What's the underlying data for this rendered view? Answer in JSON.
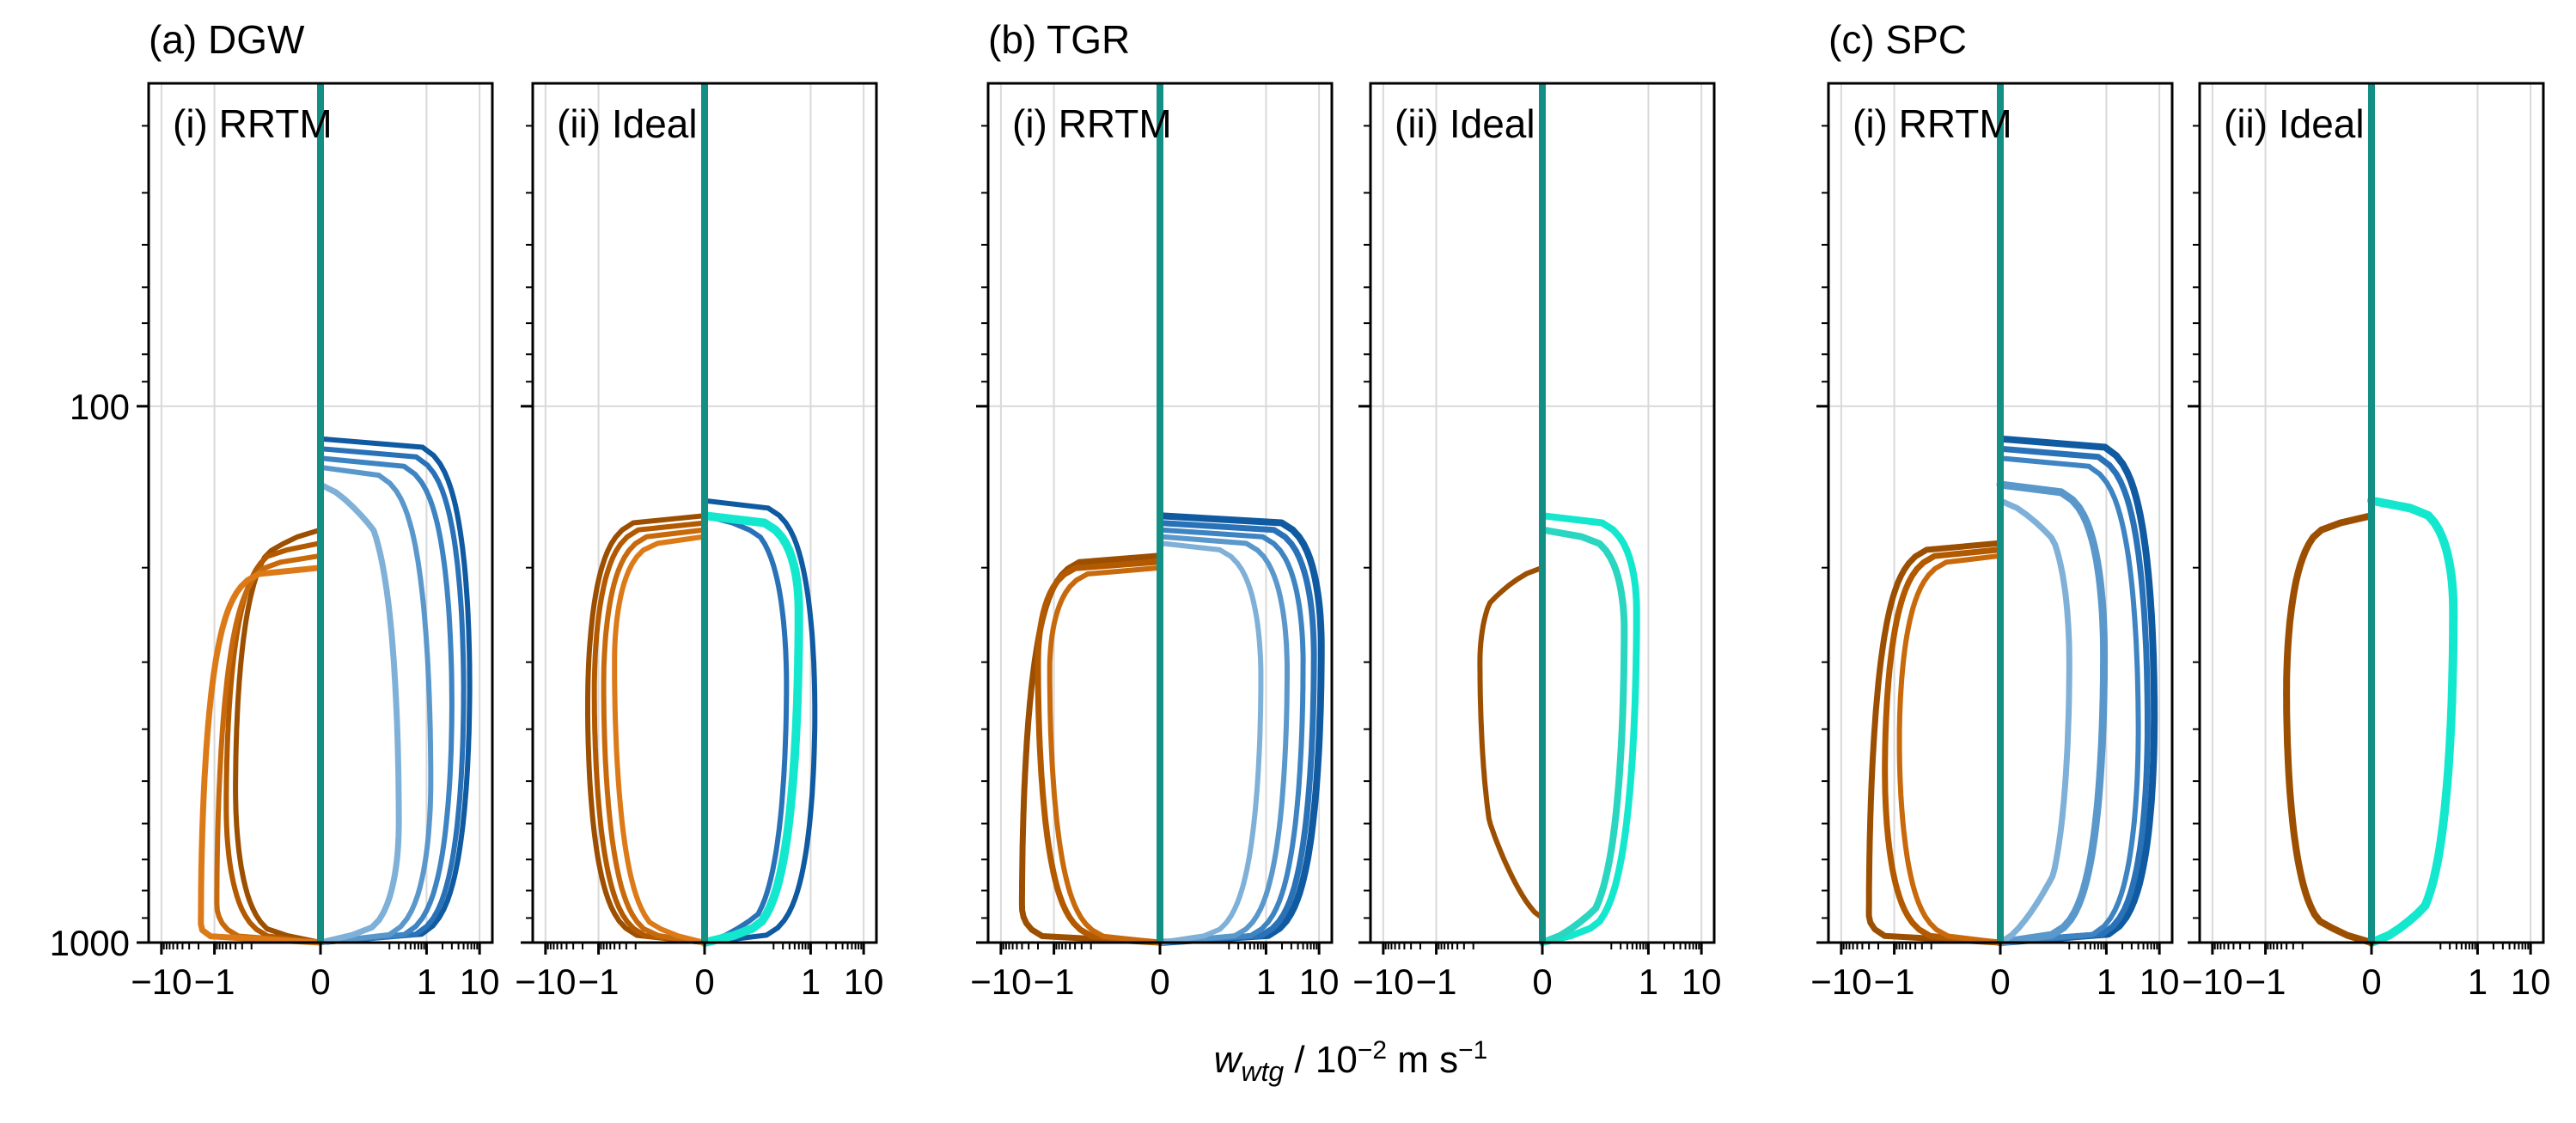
{
  "figure": {
    "xlabel_main": "w",
    "xlabel_sub": "wtg",
    "xlabel_rest": " / 10",
    "xlabel_exp": "−2",
    "xlabel_unit": " m s",
    "xlabel_unit_exp": "−1"
  },
  "colors": {
    "neg": [
      "#9c4f00",
      "#b35a00",
      "#c86a0c",
      "#dc7a18",
      "#f08c26",
      "#f7a55c",
      "#fbbf8c"
    ],
    "pos": [
      "#0f5aa0",
      "#2a72b8",
      "#3e84c2",
      "#5a98cc",
      "#7fb0d8",
      "#a6c8e4",
      "#c4dbee"
    ],
    "ideal_pos": [
      "#13e8cf",
      "#2ad6c0",
      "#1ec8b2"
    ],
    "zero_line": "#138f86",
    "grid": "#d9d9d9"
  },
  "chart_data": [
    {
      "type": "line",
      "group": "(a) DGW",
      "panel": "(i) RRTM",
      "title": "(a) DGW",
      "label": "(i) RRTM",
      "xscale": "symlog",
      "yscale": "log",
      "ylim": [
        1000,
        25
      ],
      "xticks": [
        "−10",
        "−1",
        "0",
        "1",
        "10"
      ],
      "yticks": [
        "100",
        "1000"
      ],
      "profiles": [
        {
          "sign": "pos",
          "amp": 6.5,
          "top": 115,
          "base": 1000,
          "peak": 330,
          "shape": "bulge",
          "width": 6
        },
        {
          "sign": "pos",
          "amp": 5.0,
          "top": 120,
          "base": 1000,
          "peak": 340,
          "shape": "bulge",
          "width": 6
        },
        {
          "sign": "pos",
          "amp": 3.0,
          "top": 125,
          "base": 1000,
          "peak": 360,
          "shape": "bulge",
          "width": 6
        },
        {
          "sign": "pos",
          "amp": 1.2,
          "top": 130,
          "base": 1000,
          "peak": 500,
          "shape": "bulge",
          "width": 6
        },
        {
          "sign": "pos",
          "amp": 0.3,
          "top": 140,
          "base": 1000,
          "peak": 600,
          "shape": "bulge",
          "width": 7
        },
        {
          "sign": "neg",
          "amp": 0.4,
          "top": 170,
          "base": 1000,
          "peak": 520,
          "shape": "bulge",
          "width": 6
        },
        {
          "sign": "neg",
          "amp": 0.6,
          "top": 180,
          "base": 1000,
          "peak": 560,
          "shape": "bulge",
          "width": 6
        },
        {
          "sign": "neg",
          "amp": 0.9,
          "top": 190,
          "base": 1000,
          "peak": 850,
          "shape": "bulge",
          "width": 6
        },
        {
          "sign": "neg",
          "amp": 1.8,
          "top": 200,
          "base": 1000,
          "peak": 930,
          "shape": "bulge",
          "width": 7
        }
      ]
    },
    {
      "type": "line",
      "group": "(a) DGW",
      "panel": "(ii) Ideal",
      "title": "",
      "label": "(ii) Ideal",
      "xscale": "symlog",
      "yscale": "log",
      "ylim": [
        1000,
        25
      ],
      "xticks": [
        "−10",
        "−1",
        "0",
        "1",
        "10"
      ],
      "yticks": [
        "100",
        "1000"
      ],
      "profiles": [
        {
          "sign": "pos",
          "amp": 1.2,
          "top": 150,
          "base": 1000,
          "peak": 370,
          "shape": "bulge",
          "width": 6
        },
        {
          "sign": "pos",
          "amp": 0.35,
          "top": 160,
          "base": 1000,
          "peak": 330,
          "shape": "bulge",
          "width": 6
        },
        {
          "sign": "ideal",
          "amp": 0.6,
          "top": 160,
          "base": 1000,
          "peak": 240,
          "shape": "bulge",
          "width": 10
        },
        {
          "sign": "neg",
          "amp": 1.6,
          "top": 160,
          "base": 1000,
          "peak": 360,
          "shape": "bulge",
          "width": 6
        },
        {
          "sign": "neg",
          "amp": 1.2,
          "top": 165,
          "base": 1000,
          "peak": 340,
          "shape": "bulge",
          "width": 6
        },
        {
          "sign": "neg",
          "amp": 0.8,
          "top": 170,
          "base": 1000,
          "peak": 330,
          "shape": "bulge",
          "width": 6
        },
        {
          "sign": "neg",
          "amp": 0.5,
          "top": 175,
          "base": 1000,
          "peak": 300,
          "shape": "bulge",
          "width": 6
        }
      ]
    },
    {
      "type": "line",
      "group": "(b) TGR",
      "panel": "(i) RRTM",
      "title": "(b) TGR",
      "label": "(i) RRTM",
      "xscale": "symlog",
      "yscale": "log",
      "ylim": [
        1000,
        25
      ],
      "xticks": [
        "−10",
        "−1",
        "0",
        "1",
        "10"
      ],
      "yticks": [
        "100",
        "1000"
      ],
      "profiles": [
        {
          "sign": "pos",
          "amp": 11.0,
          "top": 160,
          "base": 1000,
          "peak": 280,
          "shape": "bulge",
          "width": 8
        },
        {
          "sign": "pos",
          "amp": 8.0,
          "top": 165,
          "base": 1000,
          "peak": 290,
          "shape": "bulge",
          "width": 7
        },
        {
          "sign": "pos",
          "amp": 5.0,
          "top": 170,
          "base": 1000,
          "peak": 300,
          "shape": "bulge",
          "width": 6
        },
        {
          "sign": "pos",
          "amp": 2.5,
          "top": 175,
          "base": 1000,
          "peak": 310,
          "shape": "bulge",
          "width": 6
        },
        {
          "sign": "pos",
          "amp": 0.8,
          "top": 180,
          "base": 1000,
          "peak": 320,
          "shape": "bulge",
          "width": 6
        },
        {
          "sign": "neg",
          "amp": 4.0,
          "top": 190,
          "base": 1000,
          "peak": 860,
          "shape": "bulge",
          "width": 7
        },
        {
          "sign": "neg",
          "amp": 2.0,
          "top": 195,
          "base": 1000,
          "peak": 300,
          "shape": "bulge",
          "width": 7
        },
        {
          "sign": "neg",
          "amp": 1.2,
          "top": 200,
          "base": 1000,
          "peak": 310,
          "shape": "bulge",
          "width": 6
        }
      ]
    },
    {
      "type": "line",
      "group": "(b) TGR",
      "panel": "(ii) Ideal",
      "title": "",
      "label": "(ii) Ideal",
      "xscale": "symlog",
      "yscale": "log",
      "ylim": [
        1000,
        25
      ],
      "xticks": [
        "−10",
        "−1",
        "0",
        "1",
        "10"
      ],
      "yticks": [
        "100",
        "1000"
      ],
      "profiles": [
        {
          "sign": "ideal",
          "amp": 0.6,
          "top": 160,
          "base": 1000,
          "peak": 240,
          "shape": "bulge",
          "width": 8
        },
        {
          "sign": "ideal",
          "amp": 0.35,
          "top": 170,
          "base": 1000,
          "peak": 260,
          "shape": "bulge",
          "width": 8
        },
        {
          "sign": "neg",
          "amp": 0.15,
          "top": 200,
          "base": 900,
          "peak": 300,
          "shape": "bulge",
          "width": 6
        }
      ]
    },
    {
      "type": "line",
      "group": "(c) SPC",
      "panel": "(i) RRTM",
      "title": "(c) SPC",
      "label": "(i) RRTM",
      "xscale": "symlog",
      "yscale": "log",
      "ylim": [
        1000,
        25
      ],
      "xticks": [
        "−10",
        "−1",
        "0",
        "1",
        "10"
      ],
      "yticks": [
        "100",
        "1000"
      ],
      "profiles": [
        {
          "sign": "pos",
          "amp": 8.0,
          "top": 115,
          "base": 1000,
          "peak": 380,
          "shape": "bulge",
          "width": 8
        },
        {
          "sign": "pos",
          "amp": 6.0,
          "top": 120,
          "base": 1000,
          "peak": 390,
          "shape": "bulge",
          "width": 7
        },
        {
          "sign": "pos",
          "amp": 4.0,
          "top": 125,
          "base": 1000,
          "peak": 400,
          "shape": "bulge",
          "width": 6
        },
        {
          "sign": "pos",
          "amp": 0.9,
          "top": 140,
          "base": 1000,
          "peak": 290,
          "shape": "bulge",
          "width": 9
        },
        {
          "sign": "pos",
          "amp": 0.2,
          "top": 150,
          "base": 1000,
          "peak": 300,
          "shape": "bulge",
          "width": 7
        },
        {
          "sign": "neg",
          "amp": 3.0,
          "top": 180,
          "base": 1000,
          "peak": 890,
          "shape": "bulge",
          "width": 7
        },
        {
          "sign": "neg",
          "amp": 1.5,
          "top": 185,
          "base": 1000,
          "peak": 480,
          "shape": "bulge",
          "width": 7
        },
        {
          "sign": "neg",
          "amp": 0.8,
          "top": 190,
          "base": 1000,
          "peak": 420,
          "shape": "bulge",
          "width": 6
        }
      ]
    },
    {
      "type": "line",
      "group": "(c) SPC",
      "panel": "(ii) Ideal",
      "title": "",
      "label": "(ii) Ideal",
      "xscale": "symlog",
      "yscale": "log",
      "ylim": [
        1000,
        25
      ],
      "xticks": [
        "−10",
        "−1",
        "0",
        "1",
        "10"
      ],
      "yticks": [
        "100",
        "1000"
      ],
      "profiles": [
        {
          "sign": "ideal",
          "amp": 0.35,
          "top": 150,
          "base": 1000,
          "peak": 240,
          "shape": "bulge",
          "width": 10
        },
        {
          "sign": "neg",
          "amp": 0.4,
          "top": 160,
          "base": 1000,
          "peak": 340,
          "shape": "bulge",
          "width": 8
        }
      ]
    }
  ]
}
